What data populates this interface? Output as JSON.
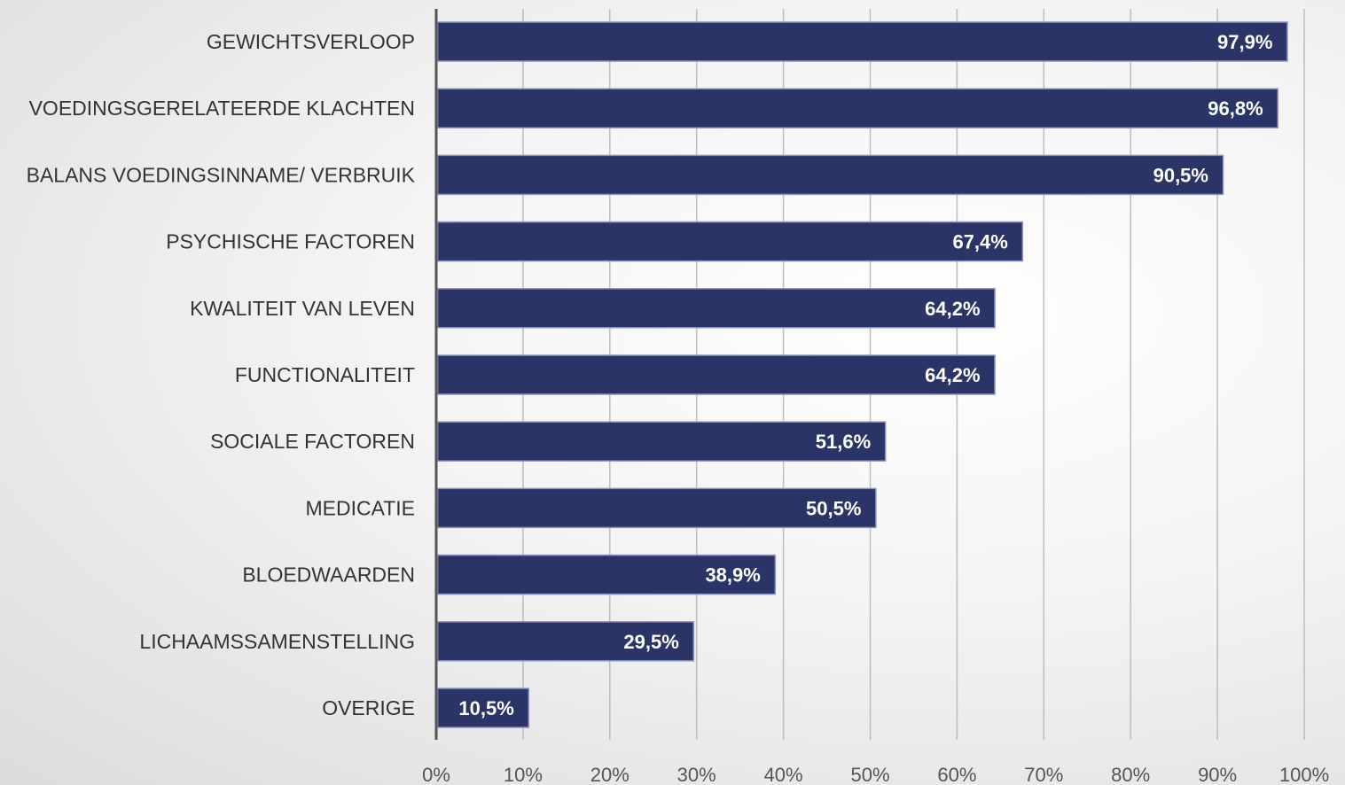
{
  "chart_data": {
    "type": "bar",
    "orientation": "horizontal",
    "categories": [
      "GEWICHTSVERLOOP",
      "VOEDINGSGERELATEERDE KLACHTEN",
      "BALANS VOEDINGSINNAME/ VERBRUIK",
      "PSYCHISCHE FACTOREN",
      "KWALITEIT VAN LEVEN",
      "FUNCTIONALITEIT",
      "SOCIALE FACTOREN",
      "MEDICATIE",
      "BLOEDWAARDEN",
      "LICHAAMSSAMENSTELLING",
      "OVERIGE"
    ],
    "values": [
      97.9,
      96.8,
      90.5,
      67.4,
      64.2,
      64.2,
      51.6,
      50.5,
      38.9,
      29.5,
      10.5
    ],
    "value_labels": [
      "97,9%",
      "96,8%",
      "90,5%",
      "67,4%",
      "64,2%",
      "64,2%",
      "51,6%",
      "50,5%",
      "38,9%",
      "29,5%",
      "10,5%"
    ],
    "x_ticks": [
      "0%",
      "10%",
      "20%",
      "30%",
      "40%",
      "50%",
      "60%",
      "70%",
      "80%",
      "90%",
      "100%"
    ],
    "xlim": [
      0,
      100
    ],
    "grid": true,
    "legend": "none",
    "title": "",
    "xlabel": "",
    "ylabel": "",
    "colors": {
      "bar": "#2b3467",
      "bar_border": "#8d93b8",
      "grid": "#bdbdbd",
      "axis": "#555555"
    }
  }
}
